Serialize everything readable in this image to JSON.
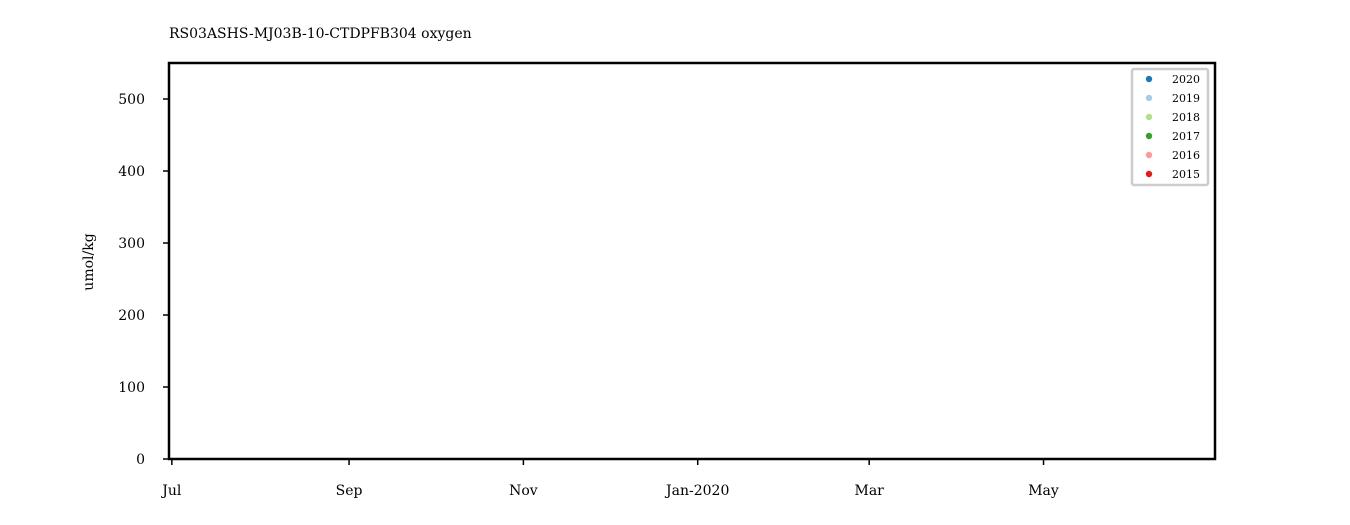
{
  "chart_data": {
    "type": "scatter",
    "title": "RS03ASHS-MJ03B-10-CTDPFB304 oxygen",
    "xlabel": "",
    "ylabel": "umol/kg",
    "ylim": [
      0,
      550
    ],
    "yticks": [
      0,
      100,
      200,
      300,
      400,
      500
    ],
    "xlim": [
      "2019-06-30",
      "2020-06-30"
    ],
    "xticks": [
      {
        "date": "2019-07-01",
        "label": "Jul"
      },
      {
        "date": "2019-09-01",
        "label": "Sep"
      },
      {
        "date": "2019-11-01",
        "label": "Nov"
      },
      {
        "date": "2020-01-01",
        "label": "Jan-2020"
      },
      {
        "date": "2020-03-01",
        "label": "Mar"
      },
      {
        "date": "2020-05-01",
        "label": "May"
      }
    ],
    "grid": false,
    "legend_position": "top-right",
    "series": [
      {
        "name": "2020",
        "color": "#1f77b4",
        "points": []
      },
      {
        "name": "2019",
        "color": "#a6cee3",
        "points": []
      },
      {
        "name": "2018",
        "color": "#b2df8a",
        "points": []
      },
      {
        "name": "2017",
        "color": "#33a02c",
        "points": []
      },
      {
        "name": "2016",
        "color": "#fb9a99",
        "points": []
      },
      {
        "name": "2015",
        "color": "#e31a1c",
        "points": []
      }
    ]
  }
}
